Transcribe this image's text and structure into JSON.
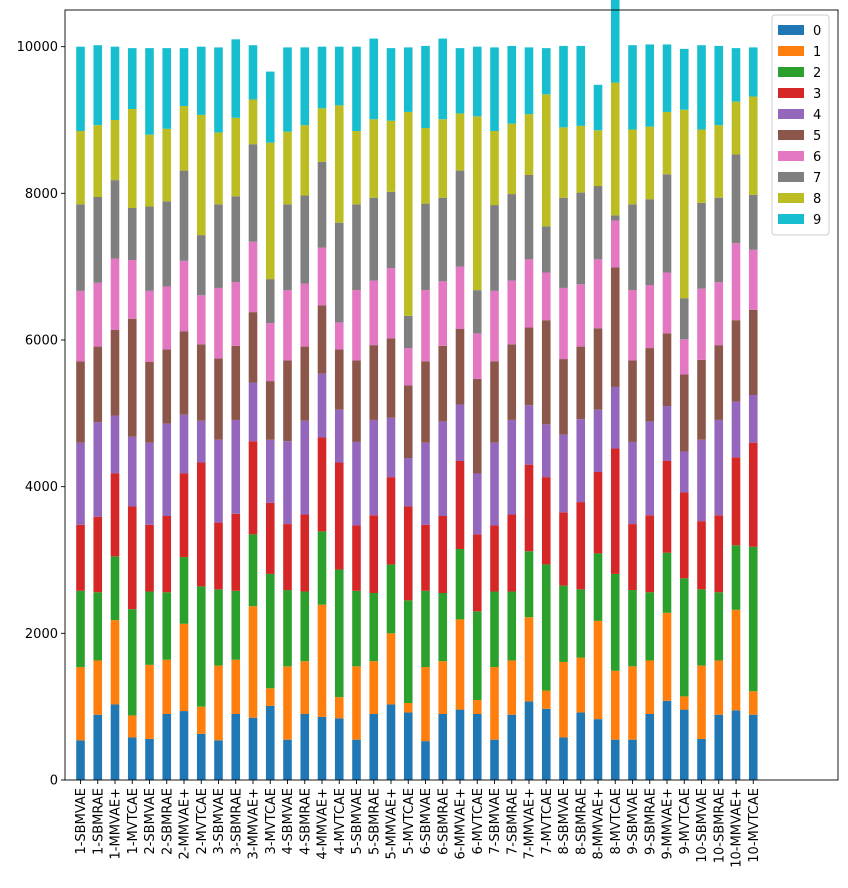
{
  "chart_data": {
    "type": "bar",
    "stacked": true,
    "title": "",
    "xlabel": "",
    "ylabel": "",
    "ylim": [
      0,
      10500
    ],
    "yticks": [
      0,
      2000,
      4000,
      6000,
      8000,
      10000
    ],
    "grid": false,
    "legend_position": "top-right",
    "categories": [
      "1-SBMVAE",
      "1-SBMRAE",
      "1-MMVAE+",
      "1-MVTCAE",
      "2-SBMVAE",
      "2-SBMRAE",
      "2-MMVAE+",
      "2-MVTCAE",
      "3-SBMVAE",
      "3-SBMRAE",
      "3-MMVAE+",
      "3-MVTCAE",
      "4-SBMVAE",
      "4-SBMRAE",
      "4-MMVAE+",
      "4-MVTCAE",
      "5-SBMVAE",
      "5-SBMRAE",
      "5-MMVAE+",
      "5-MVTCAE",
      "6-SBMVAE",
      "6-SBMRAE",
      "6-MMVAE+",
      "6-MVTCAE",
      "7-SBMVAE",
      "7-SBMRAE",
      "7-MMVAE+",
      "7-MVTCAE",
      "8-SBMVAE",
      "8-SBMRAE",
      "8-MMVAE+",
      "8-MVTCAE",
      "9-SBMVAE",
      "9-SBMRAE",
      "9-MMVAE+",
      "9-MVTCAE",
      "10-SBMVAE",
      "10-SBMRAE",
      "10-MMVAE+",
      "10-MVTCAE"
    ],
    "series": [
      {
        "name": "0",
        "color": "#1f77b4",
        "values": [
          540,
          890,
          1030,
          580,
          560,
          900,
          940,
          630,
          540,
          900,
          850,
          1010,
          550,
          900,
          860,
          840,
          550,
          900,
          1030,
          920,
          530,
          900,
          960,
          900,
          550,
          890,
          1070,
          970,
          580,
          920,
          830,
          550,
          550,
          900,
          1080,
          960,
          560,
          890,
          950,
          890
        ]
      },
      {
        "name": "1",
        "color": "#ff7f0e",
        "values": [
          1000,
          740,
          1150,
          300,
          1010,
          740,
          1190,
          370,
          1020,
          740,
          1520,
          240,
          1000,
          720,
          1530,
          290,
          1000,
          720,
          970,
          130,
          1010,
          720,
          1230,
          190,
          990,
          740,
          1150,
          250,
          1030,
          750,
          1340,
          940,
          1000,
          730,
          1200,
          180,
          1000,
          740,
          1370,
          320
        ]
      },
      {
        "name": "2",
        "color": "#2ca02c",
        "values": [
          1040,
          930,
          870,
          1450,
          1000,
          920,
          910,
          1640,
          1040,
          940,
          980,
          1560,
          1040,
          950,
          1000,
          1740,
          1030,
          930,
          940,
          1400,
          1040,
          930,
          960,
          1210,
          1030,
          940,
          900,
          1720,
          1040,
          930,
          920,
          1320,
          1040,
          930,
          820,
          1610,
          1040,
          930,
          880,
          1970
        ]
      },
      {
        "name": "3",
        "color": "#d62728",
        "values": [
          900,
          1030,
          1130,
          1400,
          910,
          1040,
          1140,
          1690,
          910,
          1050,
          1270,
          970,
          900,
          1050,
          1280,
          1460,
          890,
          1060,
          1190,
          1280,
          900,
          1050,
          1200,
          1050,
          900,
          1050,
          1180,
          1190,
          1000,
          1190,
          1110,
          1710,
          900,
          1050,
          1250,
          1170,
          930,
          1050,
          1200,
          1420
        ]
      },
      {
        "name": "4",
        "color": "#9467bd",
        "values": [
          1120,
          1290,
          790,
          950,
          1120,
          1260,
          800,
          570,
          1130,
          1280,
          800,
          860,
          1130,
          1280,
          870,
          720,
          1140,
          1300,
          810,
          660,
          1120,
          1290,
          770,
          830,
          1130,
          1290,
          810,
          720,
          1060,
          1130,
          850,
          840,
          1120,
          1280,
          750,
          560,
          1110,
          1300,
          760,
          650
        ]
      },
      {
        "name": "5",
        "color": "#8c564b",
        "values": [
          1110,
          1030,
          1170,
          1610,
          1100,
          1010,
          1140,
          1040,
          1110,
          1010,
          960,
          800,
          1100,
          1010,
          930,
          820,
          1110,
          1020,
          1080,
          990,
          1110,
          1030,
          1030,
          1290,
          1110,
          1030,
          1060,
          1420,
          1030,
          990,
          1110,
          1630,
          1110,
          1000,
          990,
          1050,
          1090,
          1020,
          1110,
          1160
        ]
      },
      {
        "name": "6",
        "color": "#e377c2",
        "values": [
          960,
          870,
          970,
          800,
          970,
          860,
          960,
          670,
          960,
          870,
          960,
          790,
          960,
          860,
          790,
          370,
          960,
          880,
          960,
          510,
          970,
          880,
          850,
          620,
          960,
          870,
          930,
          650,
          970,
          850,
          940,
          640,
          960,
          860,
          830,
          480,
          970,
          860,
          1050,
          820
        ]
      },
      {
        "name": "7",
        "color": "#7f7f7f",
        "values": [
          1180,
          1170,
          1070,
          710,
          1150,
          1160,
          1230,
          820,
          1140,
          1170,
          1330,
          600,
          1170,
          1200,
          1170,
          1360,
          1170,
          1130,
          1040,
          440,
          1180,
          1140,
          1310,
          590,
          1170,
          1180,
          1150,
          630,
          1230,
          1250,
          1000,
          70,
          1170,
          1170,
          1340,
          560,
          1170,
          1150,
          1210,
          750
        ]
      },
      {
        "name": "8",
        "color": "#bcbd22",
        "values": [
          1000,
          980,
          820,
          1350,
          980,
          990,
          880,
          1640,
          980,
          1070,
          610,
          1860,
          990,
          960,
          730,
          1600,
          1000,
          1070,
          970,
          2780,
          1030,
          1070,
          780,
          2370,
          1010,
          960,
          830,
          1800,
          960,
          910,
          760,
          1810,
          1020,
          990,
          850,
          2570,
          1000,
          990,
          720,
          1340
        ]
      },
      {
        "name": "9",
        "color": "#17becf",
        "values": [
          1150,
          1090,
          1000,
          830,
          1180,
          1100,
          790,
          930,
          1160,
          1070,
          740,
          970,
          1150,
          1060,
          840,
          800,
          1150,
          1100,
          990,
          880,
          1120,
          1100,
          890,
          950,
          1140,
          1060,
          910,
          630,
          1110,
          1090,
          620,
          1530,
          1150,
          1120,
          920,
          830,
          1150,
          1080,
          730,
          670
        ]
      }
    ]
  }
}
